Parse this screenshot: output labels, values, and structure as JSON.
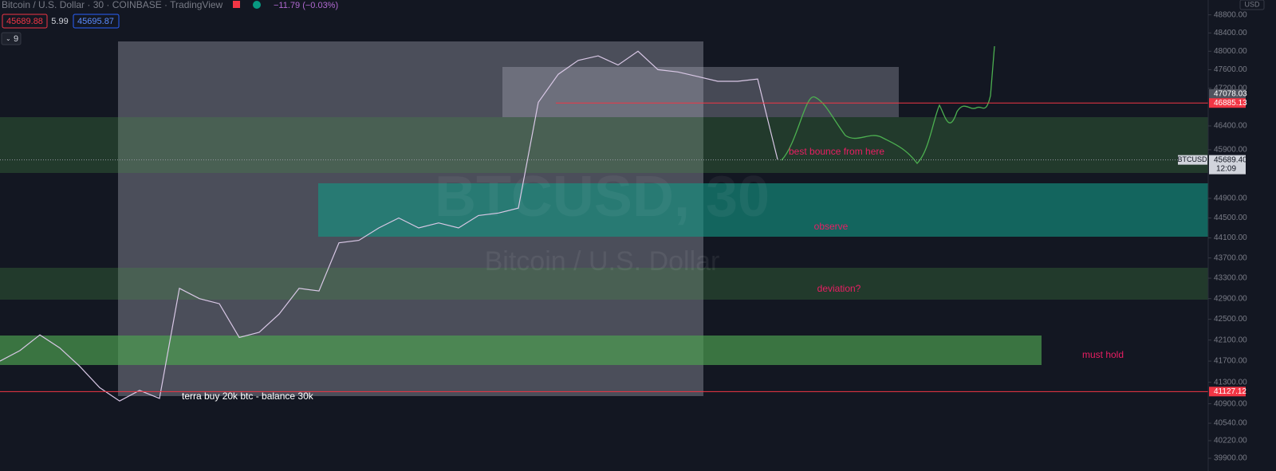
{
  "header": {
    "symbol_line": "Bitcoin / U.S. Dollar · 30 · COINBASE · TradingView",
    "change": "−11.79 (−0.03%)",
    "bid": "45689.88",
    "spread": "5.99",
    "ask": "45695.87",
    "indicators_count": "9",
    "currency": "USD"
  },
  "watermark": {
    "title": "BTCUSD, 30",
    "subtitle": "Bitcoin / U.S. Dollar"
  },
  "annotations": {
    "bounce": "best bounce from here",
    "observe": "observe",
    "deviation": "deviation?",
    "must_hold": "must hold",
    "terra": "terra buy 20k btc - balance 30k"
  },
  "chart_data": {
    "type": "line",
    "log_scale": true,
    "grid": false,
    "color": "#d9c8e6",
    "values": [
      41700,
      41900,
      42200,
      41950,
      41600,
      41200,
      40950,
      41150,
      41000,
      43100,
      42900,
      42800,
      42150,
      42250,
      42600,
      43100,
      43050,
      44000,
      44050,
      44300,
      44500,
      44300,
      44400,
      44300,
      44550,
      44600,
      44700,
      46900,
      47500,
      47800,
      47900,
      47700,
      48000,
      47600,
      47550,
      47450,
      47350,
      47350,
      47400,
      45700
    ],
    "ylim": [
      39670,
      49130
    ],
    "yticks": [
      {
        "value": 48800,
        "label": "48800.00"
      },
      {
        "value": 48400,
        "label": "48400.00"
      },
      {
        "value": 48000,
        "label": "48000.00"
      },
      {
        "value": 47600,
        "label": "47600.00"
      },
      {
        "value": 47200,
        "label": "47200.00"
      },
      {
        "value": 46400,
        "label": "46400.00"
      },
      {
        "value": 45900,
        "label": "45900.00"
      },
      {
        "value": 44900,
        "label": "44900.00"
      },
      {
        "value": 44500,
        "label": "44500.00"
      },
      {
        "value": 44100,
        "label": "44100.00"
      },
      {
        "value": 43700,
        "label": "43700.00"
      },
      {
        "value": 43300,
        "label": "43300.00"
      },
      {
        "value": 42900,
        "label": "42900.00"
      },
      {
        "value": 42500,
        "label": "42500.00"
      },
      {
        "value": 42100,
        "label": "42100.00"
      },
      {
        "value": 41700,
        "label": "41700.00"
      },
      {
        "value": 41300,
        "label": "41300.00"
      },
      {
        "value": 40900,
        "label": "40900.00"
      },
      {
        "value": 40540,
        "label": "40540.00"
      },
      {
        "value": 40220,
        "label": "40220.00"
      },
      {
        "value": 39900,
        "label": "39900.00"
      }
    ],
    "price_labels": [
      {
        "value": 47078.03,
        "color": "#50535e"
      },
      {
        "value": 46885.13,
        "color": "#f23645"
      },
      {
        "value": 41127.12,
        "color": "#f23645"
      }
    ],
    "last_price": {
      "value": 45689.4,
      "label": "45689.40",
      "countdown": "12:09",
      "tag": "BTCUSD"
    }
  }
}
